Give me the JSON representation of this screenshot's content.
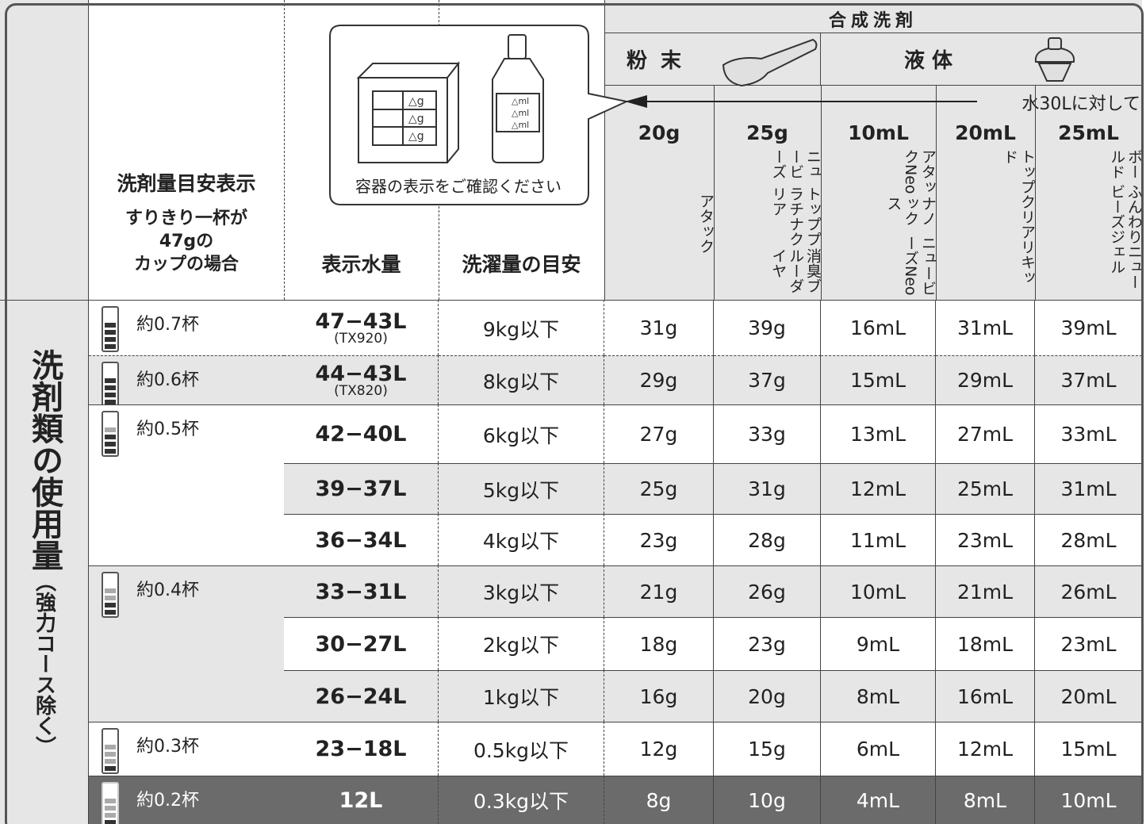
{
  "header": {
    "group": "合成洗剤",
    "powder": "粉 末",
    "liquid": "液 体",
    "per_water": "水30Lに対して",
    "container_note": "容器の表示をご確認ください",
    "box_unit": "△g",
    "bottle_unit": "△ml",
    "indicator_title": "洗剤量目安表示",
    "indicator_sub": [
      "すりきり一杯が",
      "47gの",
      "カップの場合"
    ],
    "water": "表示水量",
    "laundry": "洗濯量の目安"
  },
  "columns": [
    {
      "amount": "20g",
      "products": [
        "アタック"
      ]
    },
    {
      "amount": "25g",
      "products": [
        "ニュービーズ",
        "トッププラチナクリア",
        "消臭ブルーダイヤ"
      ]
    },
    {
      "amount": "10mL",
      "products": [
        "アタックNeo",
        "ナノックス",
        "ニュービーズNeo"
      ]
    },
    {
      "amount": "20mL",
      "products": [
        "トップクリアリキッド"
      ]
    },
    {
      "amount": "25mL",
      "products": [
        "ボールド",
        "ふんわりニュービーズジェル"
      ]
    }
  ],
  "side_label": "洗剤類の使用量",
  "side_note": "（強力コース除く）",
  "rows": [
    {
      "indicator": "約0.7杯",
      "water": "47−43L",
      "model": "(TX920)",
      "laundry": "9kg以下",
      "amounts": [
        "31g",
        "39g",
        "16mL",
        "31mL",
        "39mL"
      ]
    },
    {
      "indicator": "約0.6杯",
      "water": "44−43L",
      "model": "(TX820)",
      "laundry": "8kg以下",
      "amounts": [
        "29g",
        "37g",
        "15mL",
        "29mL",
        "37mL"
      ]
    },
    {
      "indicator": "約0.5杯",
      "water": "42−40L",
      "laundry": "6kg以下",
      "amounts": [
        "27g",
        "33g",
        "13mL",
        "27mL",
        "33mL"
      ]
    },
    {
      "water": "39−37L",
      "laundry": "5kg以下",
      "amounts": [
        "25g",
        "31g",
        "12mL",
        "25mL",
        "31mL"
      ]
    },
    {
      "water": "36−34L",
      "laundry": "4kg以下",
      "amounts": [
        "23g",
        "28g",
        "11mL",
        "23mL",
        "28mL"
      ]
    },
    {
      "indicator": "約0.4杯",
      "water": "33−31L",
      "laundry": "3kg以下",
      "amounts": [
        "21g",
        "26g",
        "10mL",
        "21mL",
        "26mL"
      ]
    },
    {
      "water": "30−27L",
      "laundry": "2kg以下",
      "amounts": [
        "18g",
        "23g",
        "9mL",
        "18mL",
        "23mL"
      ]
    },
    {
      "water": "26−24L",
      "laundry": "1kg以下",
      "amounts": [
        "16g",
        "20g",
        "8mL",
        "16mL",
        "20mL"
      ]
    },
    {
      "indicator": "約0.3杯",
      "water": "23−18L",
      "laundry": "0.5kg以下",
      "amounts": [
        "12g",
        "15g",
        "6mL",
        "12mL",
        "15mL"
      ]
    },
    {
      "indicator": "約0.2杯",
      "water": "12L",
      "laundry": "0.3kg以下",
      "amounts": [
        "8g",
        "10g",
        "4mL",
        "8mL",
        "10mL"
      ]
    }
  ]
}
